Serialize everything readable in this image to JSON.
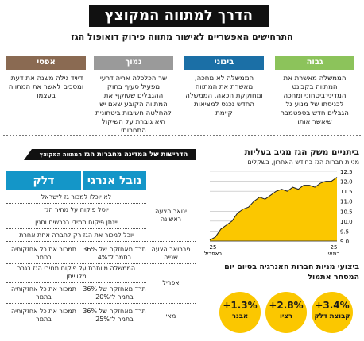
{
  "header": {
    "title": "הדרך למתווה המקוצץ",
    "subtitle": "התרחישים האפשריים לאישור מתווה פירוק דואופול הגז"
  },
  "scenarios": [
    {
      "label": "גבוה",
      "color": "#8cc35b",
      "text": "הממשלה מאשרת את המתווה בקבינט המדיני־ביטחוני ומחכה לכניסתו של מנוע גל הגבלים חדש בספטמבר שיאשר אותו"
    },
    {
      "label": "בינוני",
      "color": "#1b6fa6",
      "text": "הממשלה לא מחכה, מאשרת את המתווה ומחוקקת הכאה. הממשלה החדש נכנס למציאות קיימת"
    },
    {
      "label": "נמוך",
      "color": "#9a9a9a",
      "text": "שר הכלכלה אריה דרעי מפעיל סעיף בחוק ההגבלים שעוקף את המתווה הקובע שאם יש להחלטה חשיבות ביטחונית היא גוברת על השיקול התחרותי"
    },
    {
      "label": "אפסי",
      "color": "#8a6a52",
      "text": "דיויד גילה משנה את דעתו ומסכים לאשר את המתווה בעצמו"
    }
  ],
  "requirements": {
    "title": "הדרישות של המדינה מחברות הגז",
    "title_suffix": "המתווה המקוצץ",
    "columns": [
      "נובל אנרגי",
      "דלק"
    ],
    "rows": [
      {
        "label": "ינואר הצעה ראשונה",
        "full": [
          "לא יוכלו למכור גז לישראל",
          "יוסל פיקוח על מחיר הגז",
          "יינתן פיקוח תמידי בכרשים ותנין",
          "יוכל למכור את הגז רק לחברה אחת אחרת"
        ]
      },
      {
        "label": "פברואר הצעה שנייה",
        "noble": "תרד מאחזקה של 36% בתמר ל־4%",
        "delek": "תמכור את כל אחזקותיה בתמר"
      },
      {
        "label": "אפריל",
        "full": [
          "הממשלה מוותרת על פיקוח מחירי הגז בגבר מלווייתן"
        ],
        "noble": "תרד מאחזקה של 36% בתמר ל־20%",
        "delek": "תמכור את כל אחזקותיה בתמר"
      },
      {
        "label": "מאי",
        "noble": "תרד מאחזקה של 36% בתמר ל־25%",
        "delek": "תמכור את כל אחזקותיה בתמר"
      }
    ]
  },
  "chart_data": {
    "type": "area",
    "title": "ביתניים משק הגז מגיב בעליות",
    "subtitle": "מניות חברות הגז בחודש האחרון, בשקלים",
    "x_labels": [
      "25 באפריל",
      "25 במאי"
    ],
    "ylim": [
      9.0,
      12.5
    ],
    "yticks": [
      9.0,
      9.5,
      10.0,
      10.5,
      11.0,
      11.5,
      12.0,
      12.5
    ],
    "values": [
      9.05,
      9.2,
      9.6,
      9.8,
      10.0,
      10.4,
      10.6,
      10.7,
      11.0,
      11.2,
      11.1,
      11.3,
      11.5,
      11.6,
      11.5,
      11.7,
      11.6,
      11.8,
      11.8,
      11.7,
      11.9,
      12.0,
      12.0,
      12.2
    ],
    "color": "#fbc700"
  },
  "chart_footer": "ביצועי מניות חברות האנרגיה בסיום יום המסחר אתמול",
  "bubbles": [
    {
      "pct": "+3.4%",
      "name": "קבוצת דלק"
    },
    {
      "pct": "+2.8%",
      "name": "רציו"
    },
    {
      "pct": "+1.3%",
      "name": "אבנר"
    }
  ]
}
